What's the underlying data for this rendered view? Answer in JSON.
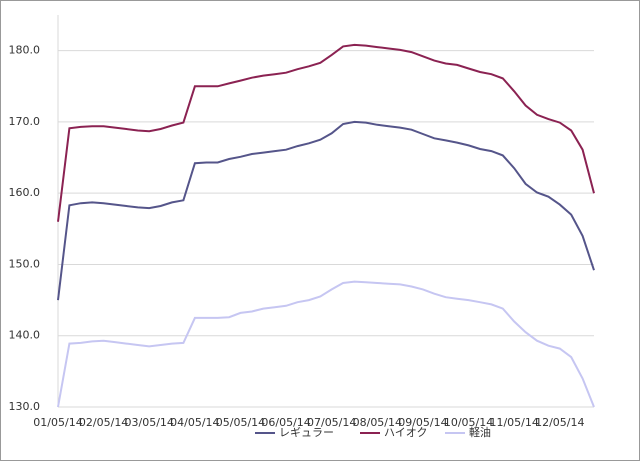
{
  "chart_data": {
    "type": "line",
    "categories": [
      "01/05/14",
      null,
      null,
      null,
      "02/05/14",
      null,
      null,
      null,
      "03/05/14",
      null,
      null,
      null,
      "04/05/14",
      null,
      null,
      null,
      "05/05/14",
      null,
      null,
      null,
      "06/05/14",
      null,
      null,
      null,
      "07/05/14",
      null,
      null,
      null,
      "08/05/14",
      null,
      null,
      null,
      "09/05/14",
      null,
      null,
      null,
      "10/05/14",
      null,
      null,
      null,
      "11/05/14",
      null,
      null,
      null,
      "12/05/14",
      null,
      null,
      null
    ],
    "series": [
      {
        "name": "レギュラー",
        "color": "#55558a",
        "values": [
          145,
          158.3,
          158.6,
          158.7,
          158.6,
          158.4,
          158.2,
          158,
          157.9,
          158.2,
          158.7,
          159,
          164.2,
          164.3,
          164.3,
          164.8,
          165.1,
          165.5,
          165.7,
          165.9,
          166.1,
          166.6,
          167,
          167.5,
          168.4,
          169.7,
          170,
          169.9,
          169.6,
          169.4,
          169.2,
          168.9,
          168.3,
          167.7,
          167.4,
          167.1,
          166.7,
          166.2,
          165.9,
          165.3,
          163.5,
          161.3,
          160.1,
          159.5,
          158.4,
          157,
          154,
          149.2
        ]
      },
      {
        "name": "ハイオク",
        "color": "#8b2252",
        "values": [
          156,
          169.1,
          169.3,
          169.4,
          169.4,
          169.2,
          169,
          168.8,
          168.7,
          169,
          169.5,
          169.9,
          175,
          175,
          175,
          175.4,
          175.8,
          176.2,
          176.5,
          176.7,
          176.9,
          177.4,
          177.8,
          178.3,
          179.4,
          180.6,
          180.8,
          180.7,
          180.5,
          180.3,
          180.1,
          179.8,
          179.2,
          178.6,
          178.2,
          178,
          177.5,
          177,
          176.7,
          176.1,
          174.3,
          172.3,
          171,
          170.4,
          169.9,
          168.8,
          166.1,
          160
        ]
      },
      {
        "name": "軽油",
        "color": "#c6c6f2",
        "values": [
          130,
          138.9,
          139,
          139.2,
          139.3,
          139.1,
          138.9,
          138.7,
          138.5,
          138.7,
          138.9,
          139,
          142.5,
          142.5,
          142.5,
          142.6,
          143.2,
          143.4,
          143.8,
          144,
          144.2,
          144.7,
          145,
          145.5,
          146.5,
          147.4,
          147.6,
          147.5,
          147.4,
          147.3,
          147.2,
          146.9,
          146.5,
          145.9,
          145.4,
          145.2,
          145,
          144.7,
          144.4,
          143.8,
          142,
          140.5,
          139.3,
          138.6,
          138.2,
          137,
          134,
          130
        ]
      }
    ],
    "ylim": [
      130,
      185
    ],
    "yticks": [
      {
        "value": 130,
        "label": "130.0"
      },
      {
        "value": 140,
        "label": "140.0"
      },
      {
        "value": 150,
        "label": "150.0"
      },
      {
        "value": 160,
        "label": "160.0"
      },
      {
        "value": 170,
        "label": "170.0"
      },
      {
        "value": 180,
        "label": "180.0"
      }
    ],
    "grid": true,
    "legend": "bottom"
  }
}
